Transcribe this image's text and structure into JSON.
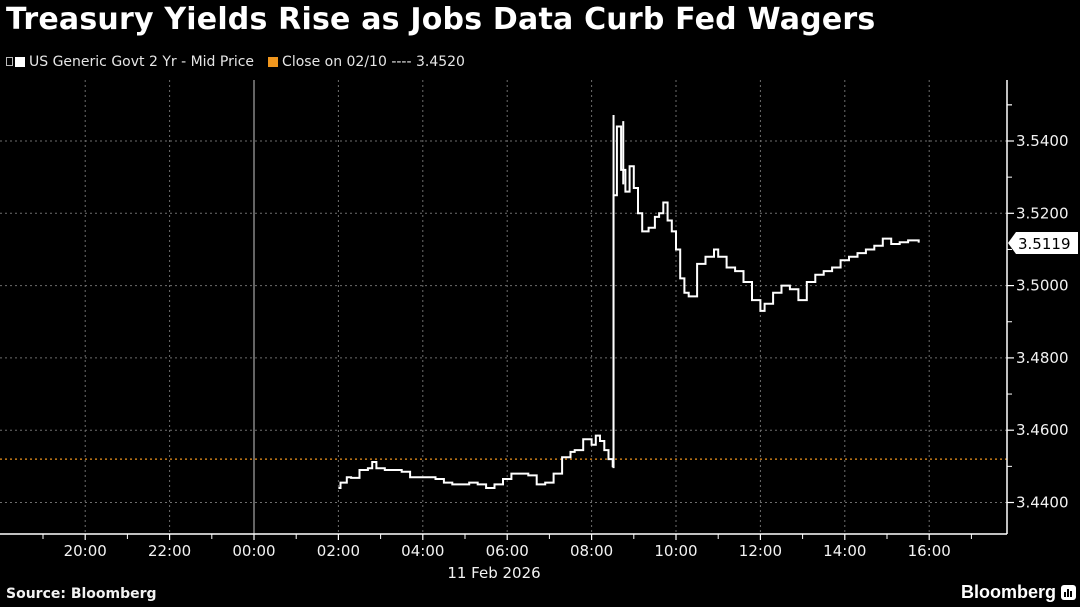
{
  "header": {
    "title": "Treasury Yields Rise as Jobs Data Curb Fed Wagers"
  },
  "legend": {
    "items": [
      {
        "label": "US Generic Govt 2 Yr - Mid Price",
        "color": "#ffffff"
      },
      {
        "label": "Close on 02/10 ---- 3.4520",
        "color": "#f0961e"
      }
    ]
  },
  "footer": {
    "source": "Source: Bloomberg",
    "brand": "Bloomberg"
  },
  "colors": {
    "background": "#000000",
    "series": "#ffffff",
    "close_line": "#f0961e",
    "grid": "#777777"
  },
  "chart_data": {
    "type": "line",
    "title": "Treasury Yields Rise as Jobs Data Curb Fed Wagers",
    "xlabel": "11 Feb 2026",
    "ylabel": "",
    "ylim": [
      3.438,
      3.556
    ],
    "y_axis_position": "right",
    "yticks": [
      "3.4400",
      "3.4600",
      "3.4800",
      "3.5000",
      "3.5200",
      "3.5400"
    ],
    "xticks": [
      "20:00",
      "22:00",
      "00:00",
      "02:00",
      "04:00",
      "06:00",
      "08:00",
      "10:00",
      "12:00",
      "14:00",
      "16:00"
    ],
    "x_date_label": "11 Feb 2026",
    "grid": true,
    "legend_position": "top-left",
    "last_value_label": "3.5119",
    "reference_line": {
      "label": "Close on 02/10",
      "value": 3.452
    },
    "series": [
      {
        "name": "US Generic Govt 2 Yr - Mid Price",
        "x_hours_from_midnight": [
          2.0,
          2.05,
          2.2,
          2.3,
          2.5,
          2.7,
          2.8,
          2.9,
          3.1,
          3.3,
          3.5,
          3.7,
          3.9,
          4.1,
          4.3,
          4.5,
          4.7,
          4.9,
          5.1,
          5.3,
          5.5,
          5.7,
          5.9,
          6.1,
          6.3,
          6.5,
          6.7,
          6.9,
          7.1,
          7.3,
          7.5,
          7.6,
          7.8,
          8.0,
          8.1,
          8.2,
          8.3,
          8.4,
          8.5,
          8.52,
          8.6,
          8.7,
          8.8,
          8.9,
          9.0,
          9.1,
          9.2,
          9.35,
          9.5,
          9.6,
          9.7,
          9.8,
          9.9,
          10.0,
          10.1,
          10.2,
          10.3,
          10.5,
          10.7,
          10.9,
          11.0,
          11.2,
          11.4,
          11.6,
          11.8,
          12.0,
          12.1,
          12.3,
          12.5,
          12.7,
          12.9,
          13.1,
          13.3,
          13.5,
          13.7,
          13.9,
          14.1,
          14.3,
          14.5,
          14.7,
          14.9,
          15.1,
          15.3,
          15.5,
          15.75
        ],
        "values": [
          3.444,
          3.4455,
          3.447,
          3.4468,
          3.449,
          3.4495,
          3.4512,
          3.4495,
          3.449,
          3.449,
          3.4485,
          3.447,
          3.447,
          3.447,
          3.4465,
          3.4455,
          3.445,
          3.445,
          3.4455,
          3.445,
          3.444,
          3.445,
          3.4465,
          3.448,
          3.448,
          3.4475,
          3.445,
          3.4455,
          3.448,
          3.4525,
          3.454,
          3.4545,
          3.4575,
          3.456,
          3.4585,
          3.457,
          3.4545,
          3.452,
          3.45,
          3.525,
          3.544,
          3.532,
          3.526,
          3.533,
          3.527,
          3.52,
          3.515,
          3.516,
          3.519,
          3.52,
          3.523,
          3.518,
          3.515,
          3.51,
          3.502,
          3.498,
          3.497,
          3.506,
          3.508,
          3.51,
          3.508,
          3.505,
          3.504,
          3.501,
          3.496,
          3.493,
          3.495,
          3.498,
          3.5,
          3.499,
          3.496,
          3.501,
          3.503,
          3.504,
          3.505,
          3.507,
          3.508,
          3.509,
          3.51,
          3.511,
          3.513,
          3.5115,
          3.512,
          3.5125,
          3.5119
        ]
      }
    ]
  }
}
